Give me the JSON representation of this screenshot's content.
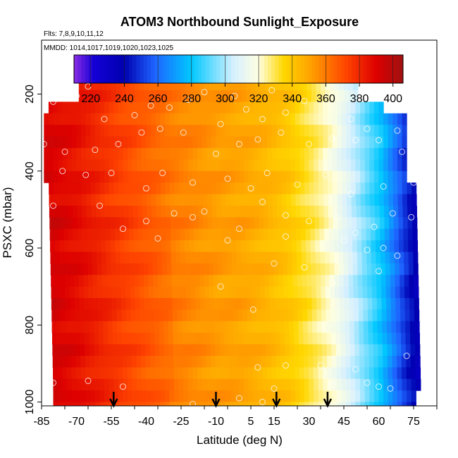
{
  "chart_data": {
    "type": "heatmap",
    "title": "ATOM3 Northbound Sunlight_Exposure",
    "subtitle_flights": "Flts: 7,8,9,10,11,12",
    "subtitle_dates": "MMDD: 1014,1017,1019,1020,1023,1025",
    "xlabel": "Latitude (deg N)",
    "ylabel": "PSXC (mbar)",
    "xlim": [
      -85,
      85
    ],
    "ylim": [
      1010,
      60
    ],
    "y_inverted": true,
    "x_ticks": [
      -85,
      -70,
      -55,
      -40,
      -25,
      -10,
      5,
      15,
      30,
      45,
      60,
      75
    ],
    "x_tick_labels": [
      "-85",
      "-70",
      "-55",
      "-40",
      "-25",
      "-10",
      "5",
      "15",
      "30",
      "45",
      "60",
      "75"
    ],
    "y_ticks": [
      200,
      400,
      600,
      800,
      1000
    ],
    "y_tick_labels": [
      "200",
      "400",
      "600",
      "800",
      "1000"
    ],
    "colorbar": {
      "min": 210,
      "max": 406,
      "ticks": [
        220,
        240,
        260,
        280,
        300,
        320,
        340,
        360,
        380,
        400
      ],
      "tick_labels": [
        "220",
        "240",
        "260",
        "280",
        "300",
        "320",
        "340",
        "360",
        "380",
        "400"
      ],
      "color_stops": [
        {
          "value": 210,
          "color": "#8a2be2"
        },
        {
          "value": 222,
          "color": "#1400d6"
        },
        {
          "value": 240,
          "color": "#0000b0"
        },
        {
          "value": 258,
          "color": "#1e64ff"
        },
        {
          "value": 280,
          "color": "#00c8ff"
        },
        {
          "value": 305,
          "color": "#d6f0ff"
        },
        {
          "value": 320,
          "color": "#ffffe0"
        },
        {
          "value": 335,
          "color": "#ffd700"
        },
        {
          "value": 350,
          "color": "#ffa500"
        },
        {
          "value": 372,
          "color": "#ff4500"
        },
        {
          "value": 390,
          "color": "#dd0000"
        },
        {
          "value": 406,
          "color": "#a01010"
        }
      ]
    },
    "field_profile": {
      "latitudes": [
        -85,
        -70,
        -55,
        -40,
        -30,
        -20,
        -10,
        0,
        10,
        20,
        30,
        40,
        50,
        60,
        70,
        80
      ],
      "values": [
        392,
        385,
        375,
        366,
        360,
        356,
        352,
        350,
        346,
        340,
        330,
        318,
        300,
        280,
        250,
        225
      ]
    },
    "latitude_markers": [
      -54,
      -10,
      16,
      38
    ],
    "sample_points": [
      [
        -80,
        220
      ],
      [
        -70,
        205
      ],
      [
        -65,
        180
      ],
      [
        -58,
        265
      ],
      [
        -45,
        255
      ],
      [
        -38,
        230
      ],
      [
        -30,
        235
      ],
      [
        -22,
        215
      ],
      [
        -15,
        195
      ],
      [
        -8,
        278
      ],
      [
        -2,
        205
      ],
      [
        3,
        240
      ],
      [
        10,
        265
      ],
      [
        14,
        190
      ],
      [
        20,
        248
      ],
      [
        28,
        218
      ],
      [
        38,
        205
      ],
      [
        48,
        265
      ],
      [
        55,
        290
      ],
      [
        68,
        295
      ],
      [
        -84,
        330
      ],
      [
        -75,
        350
      ],
      [
        -62,
        345
      ],
      [
        -52,
        330
      ],
      [
        -42,
        300
      ],
      [
        -34,
        290
      ],
      [
        -24,
        300
      ],
      [
        -10,
        355
      ],
      [
        0,
        330
      ],
      [
        8,
        318
      ],
      [
        18,
        300
      ],
      [
        30,
        330
      ],
      [
        40,
        315
      ],
      [
        50,
        320
      ],
      [
        60,
        320
      ],
      [
        70,
        350
      ],
      [
        -76,
        400
      ],
      [
        -66,
        410
      ],
      [
        -55,
        405
      ],
      [
        -40,
        445
      ],
      [
        -33,
        405
      ],
      [
        -20,
        430
      ],
      [
        -5,
        420
      ],
      [
        5,
        445
      ],
      [
        12,
        405
      ],
      [
        25,
        435
      ],
      [
        37,
        410
      ],
      [
        48,
        460
      ],
      [
        62,
        440
      ],
      [
        75,
        430
      ],
      [
        -80,
        490
      ],
      [
        -60,
        490
      ],
      [
        -50,
        550
      ],
      [
        -40,
        530
      ],
      [
        -28,
        510
      ],
      [
        -15,
        505
      ],
      [
        -5,
        580
      ],
      [
        10,
        480
      ],
      [
        20,
        515
      ],
      [
        30,
        530
      ],
      [
        42,
        520
      ],
      [
        50,
        560
      ],
      [
        58,
        545
      ],
      [
        66,
        510
      ],
      [
        74,
        520
      ],
      [
        -35,
        575
      ],
      [
        -20,
        520
      ],
      [
        0,
        550
      ],
      [
        20,
        570
      ],
      [
        45,
        580
      ],
      [
        55,
        605
      ],
      [
        62,
        600
      ],
      [
        68,
        620
      ],
      [
        -8,
        700
      ],
      [
        6,
        760
      ],
      [
        15,
        640
      ],
      [
        28,
        650
      ],
      [
        40,
        690
      ],
      [
        60,
        660
      ],
      [
        8,
        910
      ],
      [
        20,
        905
      ],
      [
        35,
        905
      ],
      [
        50,
        915
      ],
      [
        72,
        880
      ],
      [
        -80,
        950
      ],
      [
        -65,
        945
      ],
      [
        -50,
        960
      ],
      [
        -20,
        1005
      ],
      [
        0,
        990
      ],
      [
        10,
        1000
      ],
      [
        15,
        965
      ],
      [
        40,
        955
      ],
      [
        55,
        950
      ],
      [
        60,
        960
      ],
      [
        65,
        965
      ]
    ]
  }
}
